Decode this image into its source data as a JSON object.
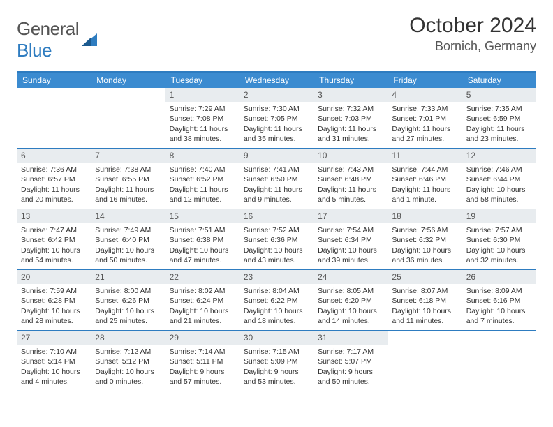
{
  "logo": {
    "text1": "General",
    "text2": "Blue"
  },
  "title": "October 2024",
  "location": "Bornich, Germany",
  "colors": {
    "header_bg": "#3b8bd0",
    "border": "#2e7cc0",
    "daynum_bg": "#e8ecef",
    "text": "#333333",
    "muted": "#555555"
  },
  "weekdays": [
    "Sunday",
    "Monday",
    "Tuesday",
    "Wednesday",
    "Thursday",
    "Friday",
    "Saturday"
  ],
  "weeks": [
    [
      null,
      null,
      {
        "n": "1",
        "sr": "7:29 AM",
        "ss": "7:08 PM",
        "dl": "11 hours and 38 minutes."
      },
      {
        "n": "2",
        "sr": "7:30 AM",
        "ss": "7:05 PM",
        "dl": "11 hours and 35 minutes."
      },
      {
        "n": "3",
        "sr": "7:32 AM",
        "ss": "7:03 PM",
        "dl": "11 hours and 31 minutes."
      },
      {
        "n": "4",
        "sr": "7:33 AM",
        "ss": "7:01 PM",
        "dl": "11 hours and 27 minutes."
      },
      {
        "n": "5",
        "sr": "7:35 AM",
        "ss": "6:59 PM",
        "dl": "11 hours and 23 minutes."
      }
    ],
    [
      {
        "n": "6",
        "sr": "7:36 AM",
        "ss": "6:57 PM",
        "dl": "11 hours and 20 minutes."
      },
      {
        "n": "7",
        "sr": "7:38 AM",
        "ss": "6:55 PM",
        "dl": "11 hours and 16 minutes."
      },
      {
        "n": "8",
        "sr": "7:40 AM",
        "ss": "6:52 PM",
        "dl": "11 hours and 12 minutes."
      },
      {
        "n": "9",
        "sr": "7:41 AM",
        "ss": "6:50 PM",
        "dl": "11 hours and 9 minutes."
      },
      {
        "n": "10",
        "sr": "7:43 AM",
        "ss": "6:48 PM",
        "dl": "11 hours and 5 minutes."
      },
      {
        "n": "11",
        "sr": "7:44 AM",
        "ss": "6:46 PM",
        "dl": "11 hours and 1 minute."
      },
      {
        "n": "12",
        "sr": "7:46 AM",
        "ss": "6:44 PM",
        "dl": "10 hours and 58 minutes."
      }
    ],
    [
      {
        "n": "13",
        "sr": "7:47 AM",
        "ss": "6:42 PM",
        "dl": "10 hours and 54 minutes."
      },
      {
        "n": "14",
        "sr": "7:49 AM",
        "ss": "6:40 PM",
        "dl": "10 hours and 50 minutes."
      },
      {
        "n": "15",
        "sr": "7:51 AM",
        "ss": "6:38 PM",
        "dl": "10 hours and 47 minutes."
      },
      {
        "n": "16",
        "sr": "7:52 AM",
        "ss": "6:36 PM",
        "dl": "10 hours and 43 minutes."
      },
      {
        "n": "17",
        "sr": "7:54 AM",
        "ss": "6:34 PM",
        "dl": "10 hours and 39 minutes."
      },
      {
        "n": "18",
        "sr": "7:56 AM",
        "ss": "6:32 PM",
        "dl": "10 hours and 36 minutes."
      },
      {
        "n": "19",
        "sr": "7:57 AM",
        "ss": "6:30 PM",
        "dl": "10 hours and 32 minutes."
      }
    ],
    [
      {
        "n": "20",
        "sr": "7:59 AM",
        "ss": "6:28 PM",
        "dl": "10 hours and 28 minutes."
      },
      {
        "n": "21",
        "sr": "8:00 AM",
        "ss": "6:26 PM",
        "dl": "10 hours and 25 minutes."
      },
      {
        "n": "22",
        "sr": "8:02 AM",
        "ss": "6:24 PM",
        "dl": "10 hours and 21 minutes."
      },
      {
        "n": "23",
        "sr": "8:04 AM",
        "ss": "6:22 PM",
        "dl": "10 hours and 18 minutes."
      },
      {
        "n": "24",
        "sr": "8:05 AM",
        "ss": "6:20 PM",
        "dl": "10 hours and 14 minutes."
      },
      {
        "n": "25",
        "sr": "8:07 AM",
        "ss": "6:18 PM",
        "dl": "10 hours and 11 minutes."
      },
      {
        "n": "26",
        "sr": "8:09 AM",
        "ss": "6:16 PM",
        "dl": "10 hours and 7 minutes."
      }
    ],
    [
      {
        "n": "27",
        "sr": "7:10 AM",
        "ss": "5:14 PM",
        "dl": "10 hours and 4 minutes."
      },
      {
        "n": "28",
        "sr": "7:12 AM",
        "ss": "5:12 PM",
        "dl": "10 hours and 0 minutes."
      },
      {
        "n": "29",
        "sr": "7:14 AM",
        "ss": "5:11 PM",
        "dl": "9 hours and 57 minutes."
      },
      {
        "n": "30",
        "sr": "7:15 AM",
        "ss": "5:09 PM",
        "dl": "9 hours and 53 minutes."
      },
      {
        "n": "31",
        "sr": "7:17 AM",
        "ss": "5:07 PM",
        "dl": "9 hours and 50 minutes."
      },
      null,
      null
    ]
  ],
  "labels": {
    "sunrise": "Sunrise: ",
    "sunset": "Sunset: ",
    "daylight": "Daylight: "
  }
}
